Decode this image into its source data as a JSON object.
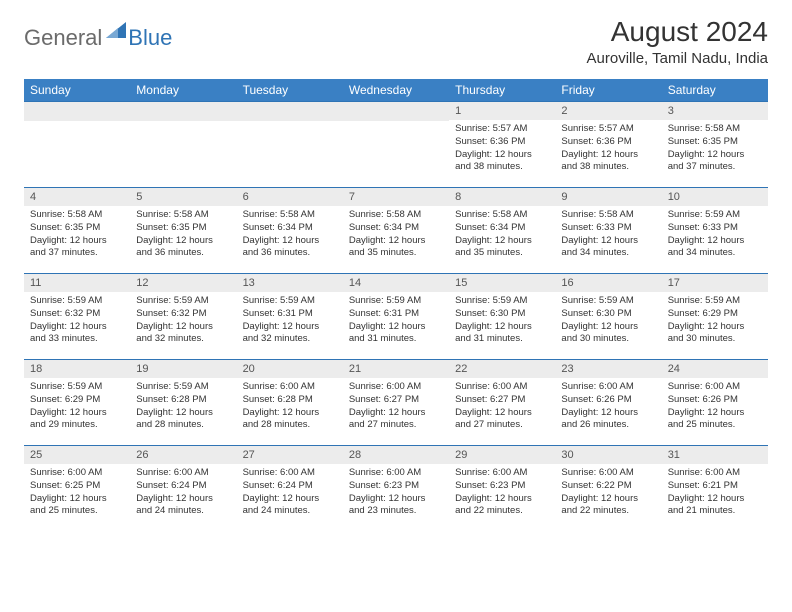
{
  "logo": {
    "general": "General",
    "blue": "Blue"
  },
  "title": "August 2024",
  "location": "Auroville, Tamil Nadu, India",
  "colors": {
    "header_bg": "#3a80c4",
    "header_text": "#ffffff",
    "daynum_bg": "#ececec",
    "daynum_text": "#555555",
    "body_text": "#333333",
    "rule": "#2f74b5",
    "logo_gray": "#6b6b6b",
    "logo_blue": "#2f74b5"
  },
  "typography": {
    "title_fontsize": 28,
    "location_fontsize": 15,
    "weekday_fontsize": 12,
    "daynum_fontsize": 11,
    "body_fontsize": 9.5
  },
  "weekdays": [
    "Sunday",
    "Monday",
    "Tuesday",
    "Wednesday",
    "Thursday",
    "Friday",
    "Saturday"
  ],
  "weeks": [
    [
      null,
      null,
      null,
      null,
      {
        "n": "1",
        "sr": "5:57 AM",
        "ss": "6:36 PM",
        "dl": "12 hours and 38 minutes."
      },
      {
        "n": "2",
        "sr": "5:57 AM",
        "ss": "6:36 PM",
        "dl": "12 hours and 38 minutes."
      },
      {
        "n": "3",
        "sr": "5:58 AM",
        "ss": "6:35 PM",
        "dl": "12 hours and 37 minutes."
      }
    ],
    [
      {
        "n": "4",
        "sr": "5:58 AM",
        "ss": "6:35 PM",
        "dl": "12 hours and 37 minutes."
      },
      {
        "n": "5",
        "sr": "5:58 AM",
        "ss": "6:35 PM",
        "dl": "12 hours and 36 minutes."
      },
      {
        "n": "6",
        "sr": "5:58 AM",
        "ss": "6:34 PM",
        "dl": "12 hours and 36 minutes."
      },
      {
        "n": "7",
        "sr": "5:58 AM",
        "ss": "6:34 PM",
        "dl": "12 hours and 35 minutes."
      },
      {
        "n": "8",
        "sr": "5:58 AM",
        "ss": "6:34 PM",
        "dl": "12 hours and 35 minutes."
      },
      {
        "n": "9",
        "sr": "5:58 AM",
        "ss": "6:33 PM",
        "dl": "12 hours and 34 minutes."
      },
      {
        "n": "10",
        "sr": "5:59 AM",
        "ss": "6:33 PM",
        "dl": "12 hours and 34 minutes."
      }
    ],
    [
      {
        "n": "11",
        "sr": "5:59 AM",
        "ss": "6:32 PM",
        "dl": "12 hours and 33 minutes."
      },
      {
        "n": "12",
        "sr": "5:59 AM",
        "ss": "6:32 PM",
        "dl": "12 hours and 32 minutes."
      },
      {
        "n": "13",
        "sr": "5:59 AM",
        "ss": "6:31 PM",
        "dl": "12 hours and 32 minutes."
      },
      {
        "n": "14",
        "sr": "5:59 AM",
        "ss": "6:31 PM",
        "dl": "12 hours and 31 minutes."
      },
      {
        "n": "15",
        "sr": "5:59 AM",
        "ss": "6:30 PM",
        "dl": "12 hours and 31 minutes."
      },
      {
        "n": "16",
        "sr": "5:59 AM",
        "ss": "6:30 PM",
        "dl": "12 hours and 30 minutes."
      },
      {
        "n": "17",
        "sr": "5:59 AM",
        "ss": "6:29 PM",
        "dl": "12 hours and 30 minutes."
      }
    ],
    [
      {
        "n": "18",
        "sr": "5:59 AM",
        "ss": "6:29 PM",
        "dl": "12 hours and 29 minutes."
      },
      {
        "n": "19",
        "sr": "5:59 AM",
        "ss": "6:28 PM",
        "dl": "12 hours and 28 minutes."
      },
      {
        "n": "20",
        "sr": "6:00 AM",
        "ss": "6:28 PM",
        "dl": "12 hours and 28 minutes."
      },
      {
        "n": "21",
        "sr": "6:00 AM",
        "ss": "6:27 PM",
        "dl": "12 hours and 27 minutes."
      },
      {
        "n": "22",
        "sr": "6:00 AM",
        "ss": "6:27 PM",
        "dl": "12 hours and 27 minutes."
      },
      {
        "n": "23",
        "sr": "6:00 AM",
        "ss": "6:26 PM",
        "dl": "12 hours and 26 minutes."
      },
      {
        "n": "24",
        "sr": "6:00 AM",
        "ss": "6:26 PM",
        "dl": "12 hours and 25 minutes."
      }
    ],
    [
      {
        "n": "25",
        "sr": "6:00 AM",
        "ss": "6:25 PM",
        "dl": "12 hours and 25 minutes."
      },
      {
        "n": "26",
        "sr": "6:00 AM",
        "ss": "6:24 PM",
        "dl": "12 hours and 24 minutes."
      },
      {
        "n": "27",
        "sr": "6:00 AM",
        "ss": "6:24 PM",
        "dl": "12 hours and 24 minutes."
      },
      {
        "n": "28",
        "sr": "6:00 AM",
        "ss": "6:23 PM",
        "dl": "12 hours and 23 minutes."
      },
      {
        "n": "29",
        "sr": "6:00 AM",
        "ss": "6:23 PM",
        "dl": "12 hours and 22 minutes."
      },
      {
        "n": "30",
        "sr": "6:00 AM",
        "ss": "6:22 PM",
        "dl": "12 hours and 22 minutes."
      },
      {
        "n": "31",
        "sr": "6:00 AM",
        "ss": "6:21 PM",
        "dl": "12 hours and 21 minutes."
      }
    ]
  ],
  "labels": {
    "sunrise": "Sunrise: ",
    "sunset": "Sunset: ",
    "daylight": "Daylight: "
  }
}
